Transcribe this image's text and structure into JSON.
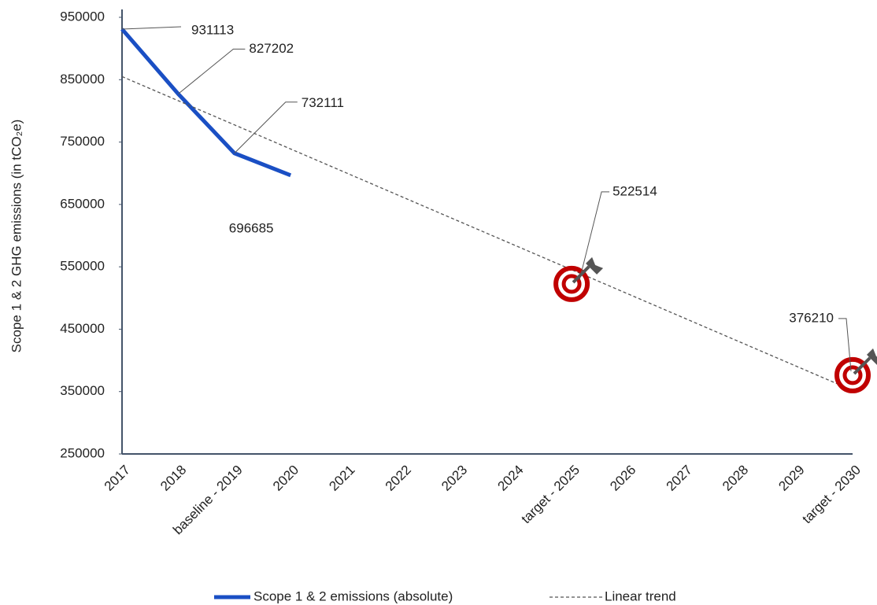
{
  "chart_data": {
    "type": "line",
    "y_label": "Scope 1 & 2 GHG emissions (in tCO₂e)",
    "categories": [
      "2017",
      "2018",
      "baseline - 2019",
      "2020",
      "2021",
      "2022",
      "2023",
      "2024",
      "target - 2025",
      "2026",
      "2027",
      "2028",
      "2029",
      "target - 2030"
    ],
    "series": [
      {
        "name": "Scope 1 & 2 emissions (absolute)",
        "color": "#1a4fc4",
        "values": [
          931113,
          827202,
          732111,
          696685,
          null,
          null,
          null,
          null,
          null,
          null,
          null,
          null,
          null,
          null
        ]
      },
      {
        "name": "Linear trend",
        "color": "#555555",
        "dashed": true,
        "values": [
          855000,
          816300,
          777600,
          738900,
          700200,
          661500,
          622800,
          584100,
          545400,
          506700,
          468000,
          429300,
          390600,
          351900
        ]
      }
    ],
    "targets": {
      "color": "#c00000",
      "values": [
        null,
        null,
        null,
        null,
        null,
        null,
        null,
        null,
        522514,
        null,
        null,
        null,
        null,
        376210
      ]
    },
    "ylim": [
      250000,
      950000
    ],
    "yticks": [
      250000,
      350000,
      450000,
      550000,
      650000,
      750000,
      850000,
      950000
    ],
    "grid": false
  }
}
